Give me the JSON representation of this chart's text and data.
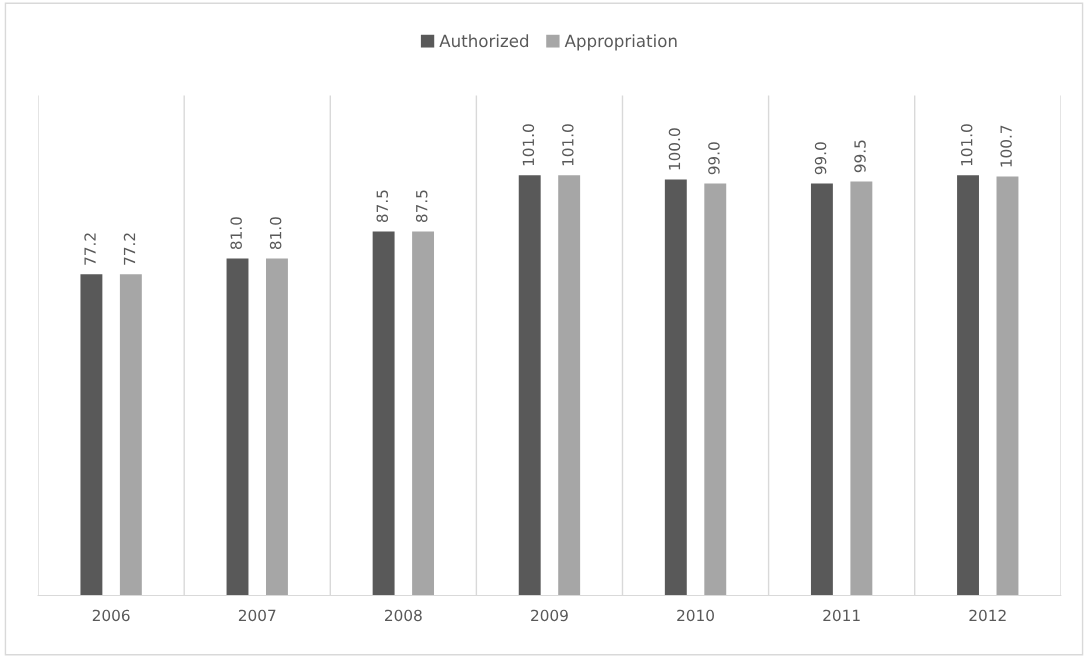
{
  "chart_data": {
    "type": "bar",
    "categories": [
      "2006",
      "2007",
      "2008",
      "2009",
      "2010",
      "2011",
      "2012"
    ],
    "series": [
      {
        "name": "Authorized",
        "color": "#595959",
        "values": [
          77.2,
          81.0,
          87.5,
          101.0,
          100.0,
          99.0,
          101.0
        ],
        "value_labels": [
          "77.2",
          "81.0",
          "87.5",
          "101.0",
          "100.0",
          "99.0",
          "101.0"
        ]
      },
      {
        "name": "Appropriation",
        "color": "#a6a6a6",
        "values": [
          77.2,
          81.0,
          87.5,
          101.0,
          99.0,
          99.5,
          100.7
        ],
        "value_labels": [
          "77.2",
          "81.0",
          "87.5",
          "101.0",
          "99.0",
          "99.5",
          "100.7"
        ]
      }
    ],
    "grid": "x",
    "legend": "top"
  }
}
